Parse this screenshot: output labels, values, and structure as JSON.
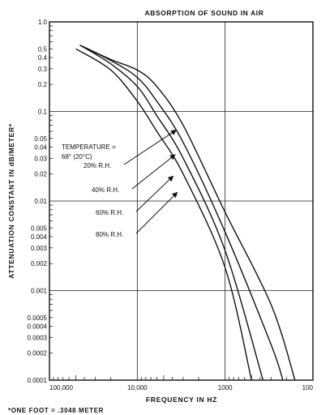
{
  "chart_data": {
    "type": "line",
    "title": "ABSORPTION OF SOUND IN AIR",
    "xlabel": "FREQUENCY IN HZ",
    "ylabel": "ATTENUATION CONSTANT IN dB/METER*",
    "footnote": "*ONE FOOT = .3048 METER",
    "x_scale": "log",
    "x_reversed": true,
    "xlim": [
      100000,
      100
    ],
    "y_scale": "log",
    "ylim": [
      0.0001,
      1.0
    ],
    "grid": true,
    "x_tick_labels": [
      "100,000",
      "10,000",
      "1000",
      "100"
    ],
    "y_tick_labels": [
      "1.0",
      "0.5",
      "0.4",
      "0.3",
      "0.2",
      "0.1",
      "0.05",
      "0.04",
      "0.03",
      "0.02",
      "0.01",
      "0.005",
      "0.004",
      "0.003",
      "0.002",
      "0.001",
      "0.0005",
      "0.0004",
      "0.0003",
      "0.0002",
      "0.0001"
    ],
    "annotation_lines": [
      "TEMPERATURE =",
      "68° (20°C)"
    ],
    "series": [
      {
        "name": "20% R.H.",
        "x": [
          45000,
          20000,
          10000,
          6000,
          3000,
          1000,
          300,
          160
        ],
        "y": [
          0.55,
          0.38,
          0.29,
          0.19,
          0.07,
          0.0075,
          0.0007,
          0.0001
        ]
      },
      {
        "name": "40% R.H.",
        "x": [
          45000,
          20000,
          10000,
          6000,
          3000,
          1000,
          300,
          220
        ],
        "y": [
          0.55,
          0.37,
          0.24,
          0.13,
          0.045,
          0.0045,
          0.00025,
          0.0001
        ]
      },
      {
        "name": "60% R.H.",
        "x": [
          45000,
          20000,
          10000,
          6000,
          3000,
          1000,
          370
        ],
        "y": [
          0.55,
          0.34,
          0.19,
          0.09,
          0.03,
          0.0028,
          0.0001
        ]
      },
      {
        "name": "80% R.H.",
        "x": [
          50000,
          20000,
          10000,
          6000,
          3000,
          1000,
          500
        ],
        "y": [
          0.5,
          0.29,
          0.13,
          0.06,
          0.02,
          0.0018,
          0.0001
        ]
      }
    ],
    "label_arrows": [
      {
        "label": "20% R.H.",
        "x": 3600,
        "y": 0.062
      },
      {
        "label": "40% R.H.",
        "x": 3700,
        "y": 0.033
      },
      {
        "label": "60% R.H.",
        "x": 3900,
        "y": 0.019
      },
      {
        "label": "80% R.H.",
        "x": 3500,
        "y": 0.0125
      }
    ]
  }
}
